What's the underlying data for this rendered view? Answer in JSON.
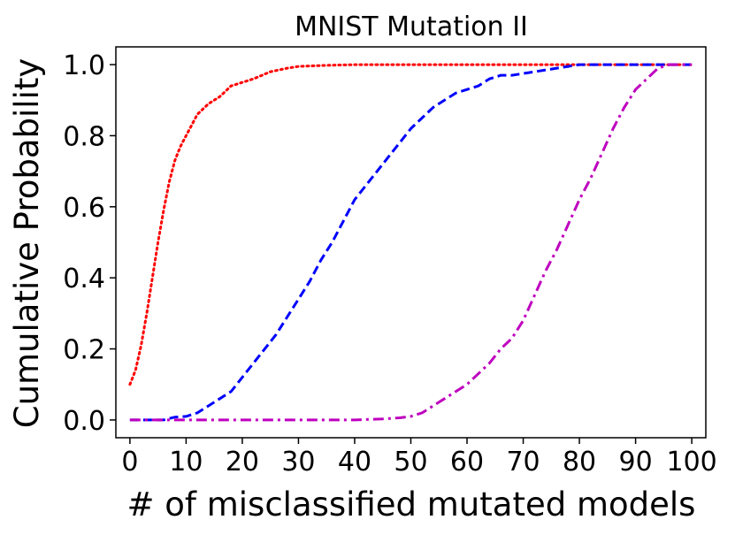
{
  "chart_data": {
    "type": "line",
    "title": "MNIST Mutation II",
    "xlabel": "# of misclassified mutated models",
    "ylabel": "Cumulative Probability",
    "xlim": [
      -2.5,
      102.5
    ],
    "ylim": [
      -0.05,
      1.05
    ],
    "x_ticks": [
      0,
      10,
      20,
      30,
      40,
      50,
      60,
      70,
      80,
      90,
      100
    ],
    "y_ticks": [
      0.0,
      0.2,
      0.4,
      0.6,
      0.8,
      1.0
    ],
    "x_tick_labels": [
      "0",
      "10",
      "20",
      "30",
      "40",
      "50",
      "60",
      "70",
      "80",
      "90",
      "100"
    ],
    "y_tick_labels": [
      "0.0",
      "0.2",
      "0.4",
      "0.6",
      "0.8",
      "1.0"
    ],
    "grid": false,
    "legend": null,
    "series": [
      {
        "name": "red dotted",
        "color": "#ff0000",
        "style": "dotted",
        "x": [
          0,
          1,
          2,
          3,
          4,
          5,
          6,
          7,
          8,
          9,
          10,
          11,
          12,
          14,
          16,
          18,
          20,
          22,
          25,
          28,
          30,
          35,
          40,
          50,
          60,
          80,
          100
        ],
        "y": [
          0.1,
          0.14,
          0.21,
          0.3,
          0.4,
          0.5,
          0.59,
          0.67,
          0.73,
          0.77,
          0.8,
          0.83,
          0.86,
          0.89,
          0.91,
          0.94,
          0.95,
          0.96,
          0.98,
          0.99,
          0.995,
          0.998,
          1.0,
          1.0,
          1.0,
          1.0,
          1.0
        ]
      },
      {
        "name": "blue dashed",
        "color": "#0000ff",
        "style": "dashed",
        "x": [
          0,
          2,
          4,
          6,
          8,
          10,
          12,
          14,
          16,
          18,
          20,
          22,
          24,
          26,
          28,
          30,
          32,
          34,
          36,
          38,
          40,
          42,
          44,
          46,
          48,
          50,
          52,
          54,
          56,
          58,
          60,
          62,
          64,
          66,
          68,
          70,
          72,
          74,
          76,
          78,
          80,
          82,
          85,
          90,
          95,
          100
        ],
        "y": [
          0.0,
          0.0,
          0.0,
          0.0,
          0.008,
          0.01,
          0.02,
          0.04,
          0.06,
          0.08,
          0.12,
          0.16,
          0.2,
          0.24,
          0.29,
          0.34,
          0.39,
          0.45,
          0.5,
          0.56,
          0.62,
          0.66,
          0.7,
          0.74,
          0.78,
          0.82,
          0.85,
          0.88,
          0.9,
          0.92,
          0.93,
          0.94,
          0.96,
          0.97,
          0.97,
          0.975,
          0.98,
          0.985,
          0.99,
          0.995,
          1.0,
          1.0,
          1.0,
          1.0,
          1.0,
          1.0
        ]
      },
      {
        "name": "magenta dash-dot",
        "color": "#bf00bf",
        "style": "dashdot",
        "x": [
          0,
          10,
          20,
          30,
          40,
          45,
          48,
          50,
          52,
          54,
          56,
          58,
          60,
          62,
          64,
          66,
          68,
          70,
          72,
          74,
          76,
          78,
          80,
          82,
          84,
          86,
          88,
          90,
          92,
          94,
          96,
          98,
          100
        ],
        "y": [
          0.0,
          0.0,
          0.0,
          0.0,
          0.0,
          0.003,
          0.006,
          0.01,
          0.02,
          0.04,
          0.06,
          0.08,
          0.1,
          0.13,
          0.16,
          0.2,
          0.23,
          0.28,
          0.35,
          0.42,
          0.48,
          0.55,
          0.62,
          0.68,
          0.75,
          0.82,
          0.88,
          0.93,
          0.96,
          0.99,
          1.0,
          1.0,
          1.0
        ]
      }
    ]
  }
}
